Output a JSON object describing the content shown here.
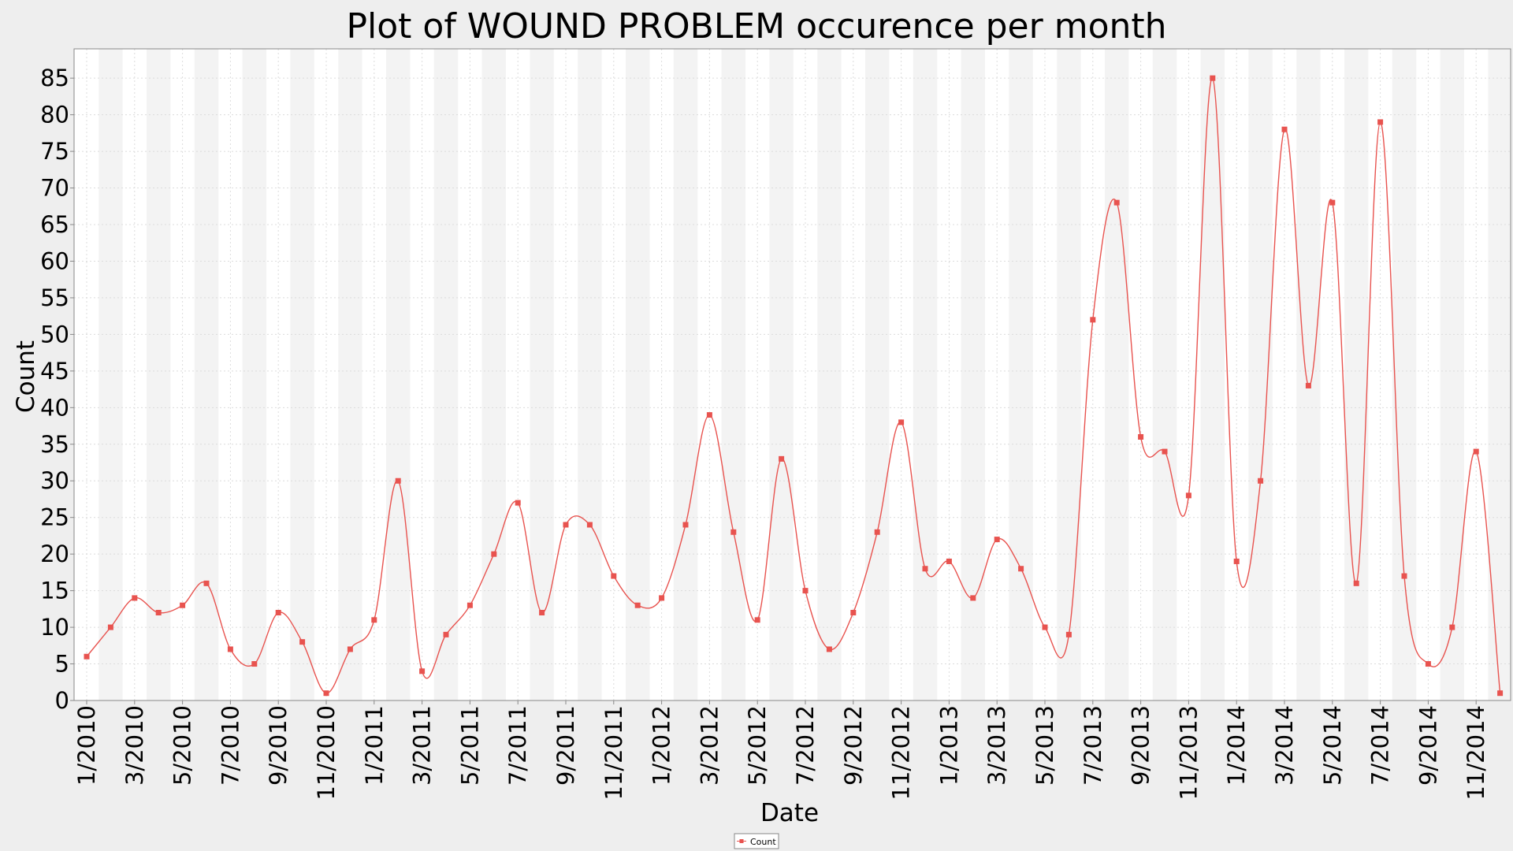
{
  "chart_data": {
    "type": "line",
    "title": "Plot of WOUND PROBLEM occurence per month",
    "xlabel": "Date",
    "ylabel": "Count",
    "ylim": [
      0,
      89
    ],
    "yticks": [
      0,
      5,
      10,
      15,
      20,
      25,
      30,
      35,
      40,
      45,
      50,
      55,
      60,
      65,
      70,
      75,
      80,
      85
    ],
    "x_tick_labels": [
      "1/2010",
      "3/2010",
      "5/2010",
      "7/2010",
      "9/2010",
      "11/2010",
      "1/2011",
      "3/2011",
      "5/2011",
      "7/2011",
      "9/2011",
      "11/2011",
      "1/2012",
      "3/2012",
      "5/2012",
      "7/2012",
      "9/2012",
      "11/2012",
      "1/2013",
      "3/2013",
      "5/2013",
      "7/2013",
      "9/2013",
      "11/2013",
      "1/2014",
      "3/2014",
      "5/2014",
      "7/2014",
      "9/2014",
      "11/2014"
    ],
    "grid": true,
    "smooth": true,
    "alternating_month_bands": true,
    "legend_position": "bottom-center",
    "series": [
      {
        "name": "Count",
        "color": "#e8534f",
        "x": [
          "1/2010",
          "2/2010",
          "3/2010",
          "4/2010",
          "5/2010",
          "6/2010",
          "7/2010",
          "8/2010",
          "9/2010",
          "10/2010",
          "11/2010",
          "12/2010",
          "1/2011",
          "2/2011",
          "3/2011",
          "4/2011",
          "5/2011",
          "6/2011",
          "7/2011",
          "8/2011",
          "9/2011",
          "10/2011",
          "11/2011",
          "12/2011",
          "1/2012",
          "2/2012",
          "3/2012",
          "4/2012",
          "5/2012",
          "6/2012",
          "7/2012",
          "8/2012",
          "9/2012",
          "10/2012",
          "11/2012",
          "12/2012",
          "1/2013",
          "2/2013",
          "3/2013",
          "4/2013",
          "5/2013",
          "6/2013",
          "7/2013",
          "8/2013",
          "9/2013",
          "10/2013",
          "11/2013",
          "12/2013",
          "1/2014",
          "2/2014",
          "3/2014",
          "4/2014",
          "5/2014",
          "6/2014",
          "7/2014",
          "8/2014",
          "9/2014",
          "10/2014",
          "11/2014",
          "12/2014"
        ],
        "values": [
          6,
          10,
          14,
          12,
          13,
          16,
          7,
          5,
          12,
          8,
          1,
          7,
          11,
          30,
          4,
          9,
          13,
          20,
          27,
          12,
          24,
          24,
          17,
          13,
          14,
          24,
          39,
          23,
          11,
          33,
          15,
          7,
          12,
          23,
          38,
          18,
          19,
          14,
          22,
          18,
          10,
          9,
          52,
          68,
          36,
          34,
          28,
          85,
          19,
          30,
          78,
          43,
          68,
          16,
          79,
          17,
          5,
          10,
          34,
          1
        ]
      }
    ]
  },
  "legend": {
    "label": "Count"
  }
}
